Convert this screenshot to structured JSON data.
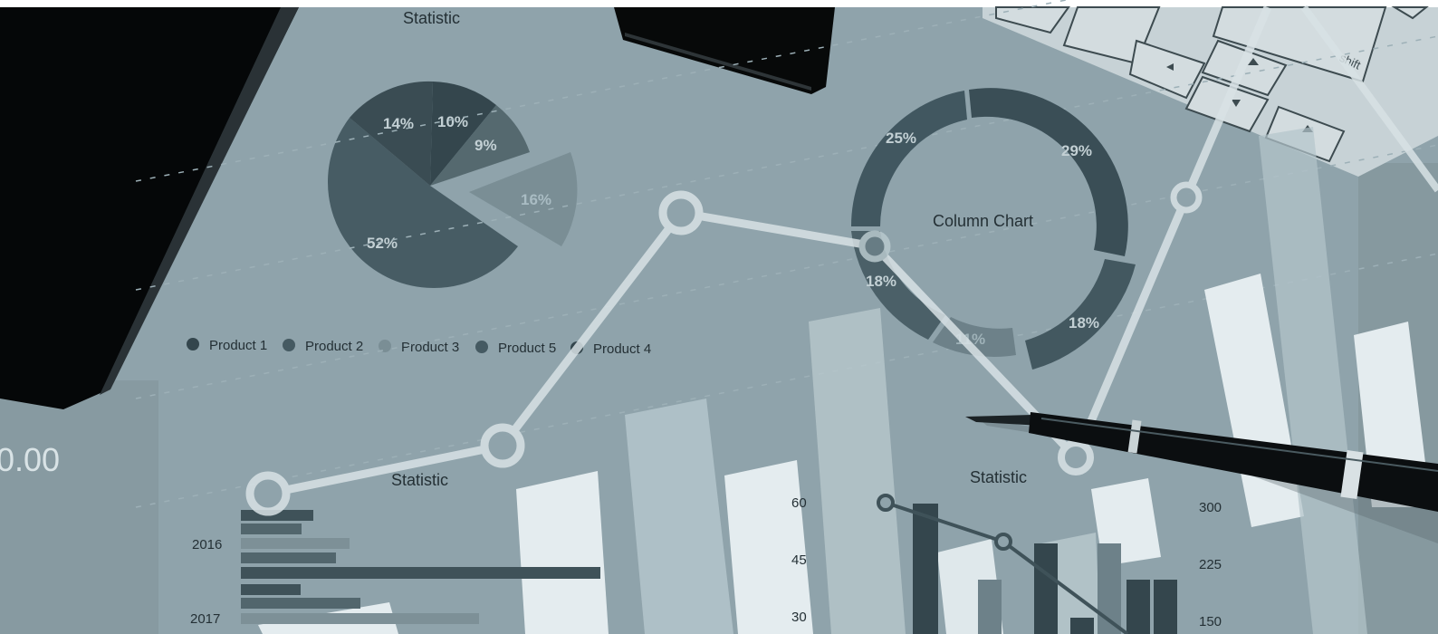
{
  "photo": {
    "pie": {
      "title": "Statistic",
      "slices": [
        {
          "label": "52%",
          "value": 52
        },
        {
          "label": "14%",
          "value": 14
        },
        {
          "label": "10%",
          "value": 10
        },
        {
          "label": "9%",
          "value": 9
        },
        {
          "label": "16%",
          "value": 16
        }
      ],
      "legend": [
        "Product 1",
        "Product 2",
        "Product 3",
        "Product 5",
        "Product 4"
      ]
    },
    "donut": {
      "title": "Column Chart",
      "labels": [
        "25%",
        "29%",
        "18%",
        "18%",
        "11%"
      ]
    },
    "hbar": {
      "title": "Statistic",
      "years": [
        "2016",
        "2017"
      ]
    },
    "vbar_axis": [
      "60",
      "45",
      "30"
    ],
    "small_chart": {
      "title": "Statistic",
      "axis": [
        "300",
        "225",
        "150"
      ]
    },
    "screen_text": "0.00",
    "keyboard_key": "shift",
    "colors": {
      "paper": "#8fa3ab",
      "dark": "#3c5058",
      "mid": "#6a7f87",
      "light": "#a9bcc3",
      "white": "#e4ecef"
    }
  }
}
